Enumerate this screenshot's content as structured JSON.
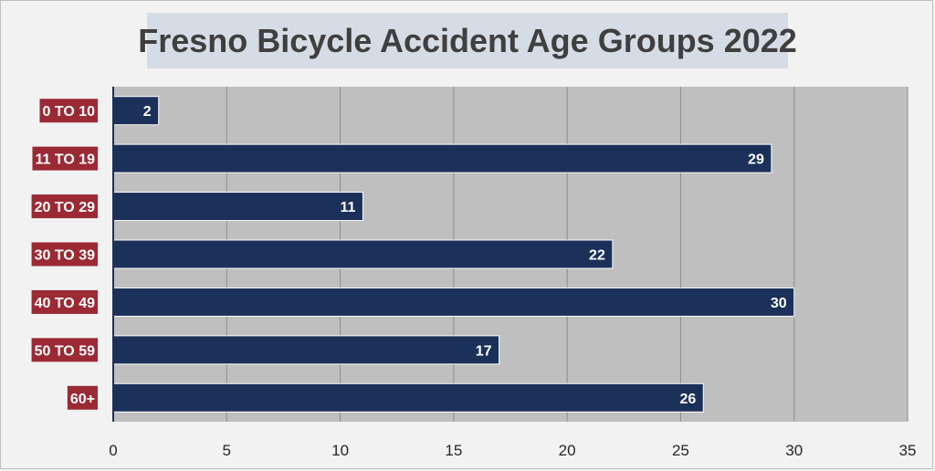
{
  "chart_data": {
    "type": "bar",
    "orientation": "horizontal",
    "title": "Fresno Bicycle Accident Age Groups 2022",
    "categories": [
      "0 TO 10",
      "11 TO 19",
      "20 TO 29",
      "30 TO 39",
      "40 TO 49",
      "50 TO 59",
      "60+"
    ],
    "values": [
      2,
      29,
      11,
      22,
      30,
      17,
      26
    ],
    "xlim": [
      0,
      35
    ],
    "x_ticks": [
      0,
      5,
      10,
      15,
      20,
      25,
      30,
      35
    ],
    "xlabel": "",
    "ylabel": "",
    "grid": "vertical",
    "legend": "none",
    "colors": {
      "bar": "#1c3159",
      "bar_label": "#ffffff",
      "category_label_bg": "#9b2a35",
      "category_label_text": "#ffffff",
      "plot_bg": "#bfbfbf",
      "title_bg": "#d6dce5",
      "title_text": "#3f3f3f"
    }
  }
}
